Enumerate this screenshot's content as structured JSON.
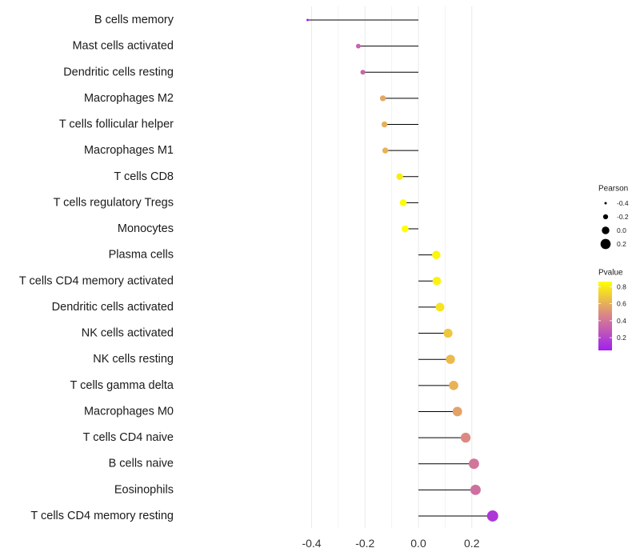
{
  "chart_data": {
    "type": "lollipop",
    "xlim": [
      -0.42,
      0.29
    ],
    "x_ticks": [
      {
        "value": -0.4,
        "label": "-0.4"
      },
      {
        "value": -0.2,
        "label": "-0.2"
      },
      {
        "value": 0.0,
        "label": "0.0"
      },
      {
        "value": 0.2,
        "label": "0.2"
      }
    ],
    "grid": true,
    "items": [
      {
        "label": "B cells memory",
        "pearson": -0.415,
        "pvalue": 0.05
      },
      {
        "label": "Mast cells activated",
        "pearson": -0.225,
        "pvalue": 0.32
      },
      {
        "label": "Dendritic cells resting",
        "pearson": -0.208,
        "pvalue": 0.34
      },
      {
        "label": "Macrophages M2",
        "pearson": -0.133,
        "pvalue": 0.58
      },
      {
        "label": "T cells follicular helper",
        "pearson": -0.127,
        "pvalue": 0.6
      },
      {
        "label": "Macrophages M1",
        "pearson": -0.124,
        "pvalue": 0.61
      },
      {
        "label": "T cells CD8",
        "pearson": -0.07,
        "pvalue": 0.8
      },
      {
        "label": "T cells regulatory  Tregs ",
        "pearson": -0.057,
        "pvalue": 0.85
      },
      {
        "label": "Monocytes",
        "pearson": -0.05,
        "pvalue": 0.86
      },
      {
        "label": "Plasma cells",
        "pearson": 0.067,
        "pvalue": 0.83
      },
      {
        "label": "T cells CD4 memory activated",
        "pearson": 0.069,
        "pvalue": 0.82
      },
      {
        "label": "Dendritic cells activated",
        "pearson": 0.081,
        "pvalue": 0.77
      },
      {
        "label": "NK cells activated",
        "pearson": 0.111,
        "pvalue": 0.68
      },
      {
        "label": "NK cells resting",
        "pearson": 0.12,
        "pvalue": 0.64
      },
      {
        "label": "T cells gamma delta",
        "pearson": 0.132,
        "pvalue": 0.61
      },
      {
        "label": "Macrophages M0",
        "pearson": 0.146,
        "pvalue": 0.56
      },
      {
        "label": "T cells CD4 naive",
        "pearson": 0.177,
        "pvalue": 0.48
      },
      {
        "label": "B cells naive",
        "pearson": 0.208,
        "pvalue": 0.4
      },
      {
        "label": "Eosinophils",
        "pearson": 0.214,
        "pvalue": 0.38
      },
      {
        "label": "T cells CD4 memory resting",
        "pearson": 0.278,
        "pvalue": 0.15
      }
    ],
    "size_legend": {
      "title": "Pearson",
      "entries": [
        {
          "value": -0.4,
          "label": "-0.4"
        },
        {
          "value": -0.2,
          "label": "-0.2"
        },
        {
          "value": 0.0,
          "label": "0.0"
        },
        {
          "value": 0.2,
          "label": "0.2"
        }
      ]
    },
    "color_legend": {
      "title": "Pvalue",
      "range": [
        0.05,
        0.86
      ],
      "ticks": [
        {
          "value": 0.8,
          "label": "0.8"
        },
        {
          "value": 0.6,
          "label": "0.6"
        },
        {
          "value": 0.4,
          "label": "0.4"
        },
        {
          "value": 0.2,
          "label": "0.2"
        }
      ],
      "colors": {
        "low": "#a020f0",
        "mid": "#d9828c",
        "high": "#ffff00"
      }
    },
    "stem_color": "#000000",
    "grid_color": "#ebebeb"
  }
}
